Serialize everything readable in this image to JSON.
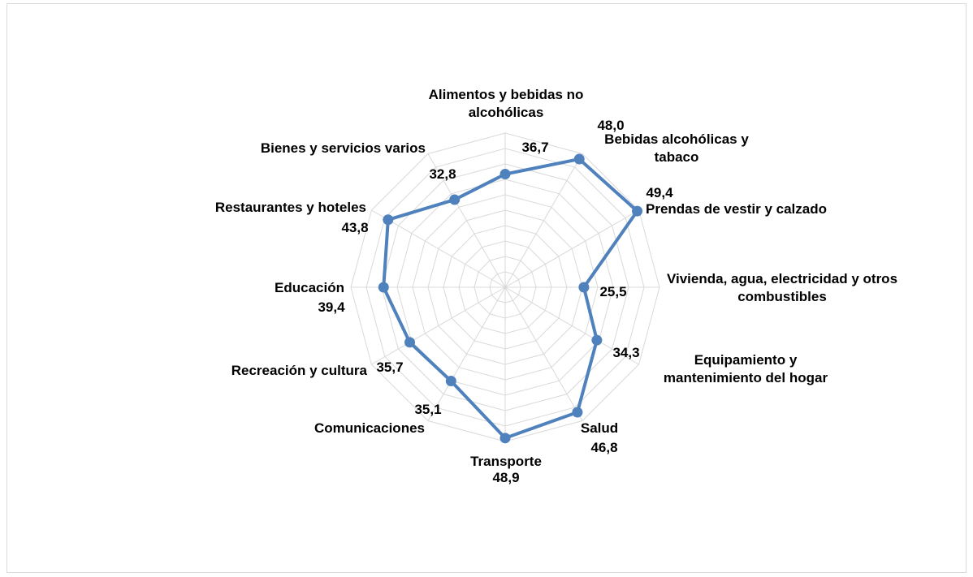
{
  "chart_data": {
    "type": "radar",
    "categories": [
      "Alimentos y bebidas no alcohólicas",
      "Bebidas alcohólicas y tabaco",
      "Prendas de vestir y calzado",
      "Vivienda, agua, electricidad y otros combustibles",
      "Equipamiento y mantenimiento del hogar",
      "Salud",
      "Transporte",
      "Comunicaciones",
      "Recreación y cultura",
      "Educación",
      "Restaurantes y hoteles",
      "Bienes y servicios varios"
    ],
    "values": [
      36.7,
      48.0,
      49.4,
      25.5,
      34.3,
      46.8,
      48.9,
      35.1,
      35.7,
      39.4,
      43.8,
      32.8
    ],
    "value_labels": [
      "36,7",
      "48,0",
      "49,4",
      "25,5",
      "34,3",
      "46,8",
      "48,9",
      "35,1",
      "35,7",
      "39,4",
      "43,8",
      "32,8"
    ],
    "color": "#4f81bd",
    "rlim": [
      0,
      50
    ],
    "rticks": [
      0,
      5,
      10,
      15,
      20,
      25,
      30,
      35,
      40,
      45,
      50
    ],
    "grid": true
  }
}
